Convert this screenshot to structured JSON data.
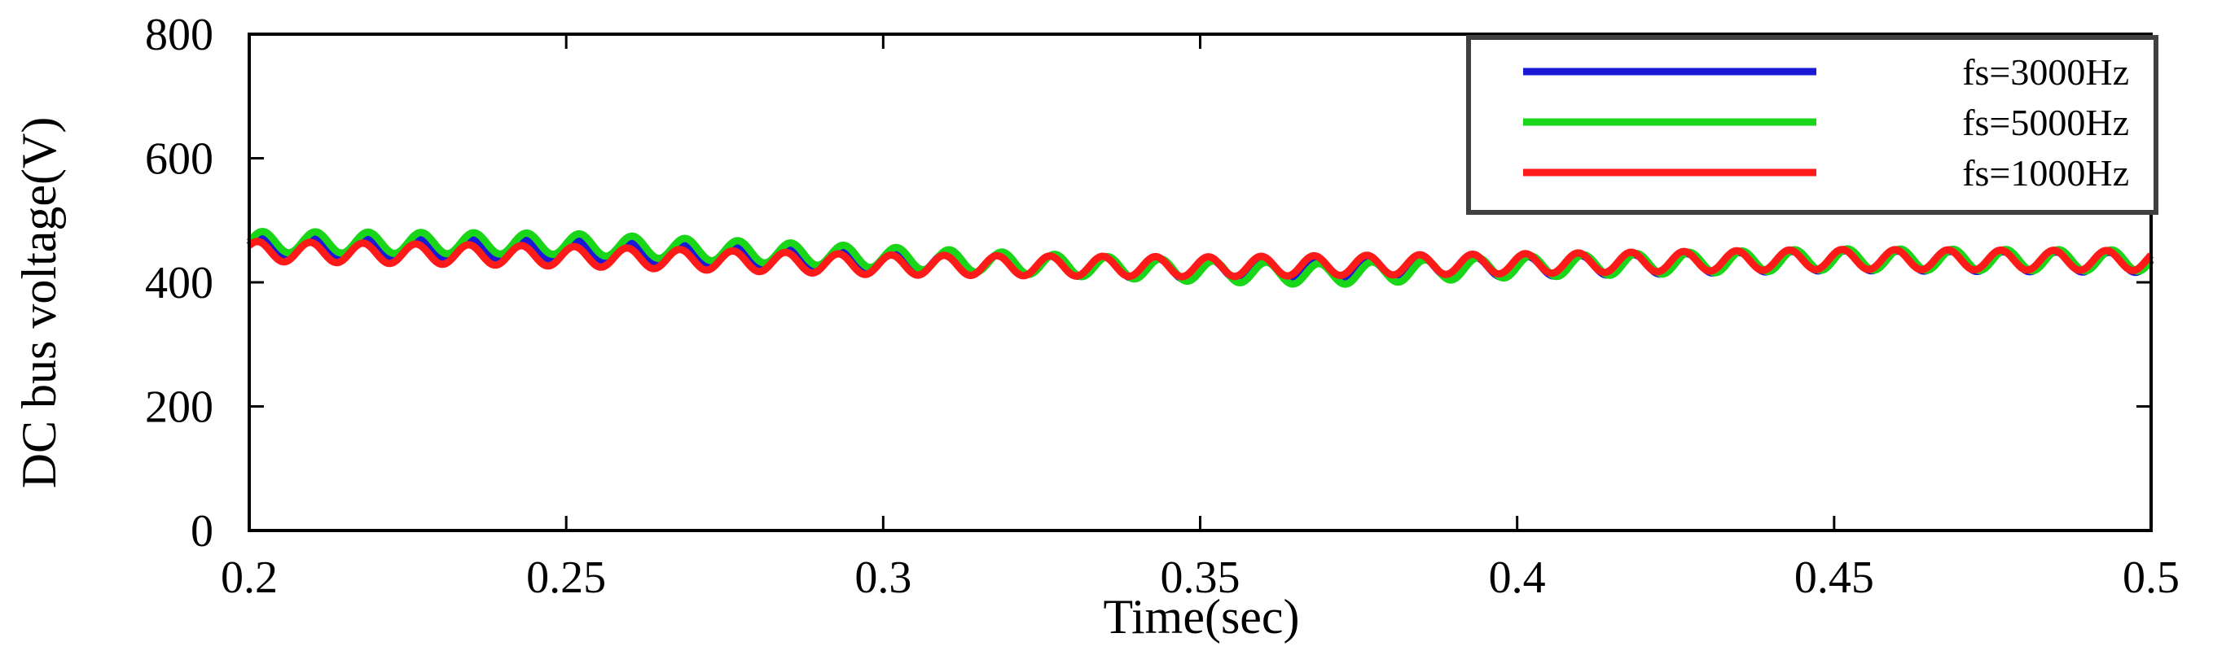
{
  "chart_data": {
    "type": "line",
    "title": "",
    "xlabel": "Time(sec)",
    "ylabel": "DC bus voltage(V)",
    "xlim": [
      0.2,
      0.5
    ],
    "ylim": [
      0,
      800
    ],
    "xticks": [
      0.2,
      0.25,
      0.3,
      0.35,
      0.4,
      0.45,
      0.5
    ],
    "xtick_labels": [
      "0.2",
      "0.25",
      "0.3",
      "0.35",
      "0.4",
      "0.45",
      "0.5"
    ],
    "yticks": [
      0,
      200,
      400,
      600,
      800
    ],
    "ytick_labels": [
      "0",
      "200",
      "400",
      "600",
      "800"
    ],
    "grid": false,
    "legend_position": "top-right",
    "ripple_frequency_hz": 120,
    "series": [
      {
        "name": "fs=3000Hz",
        "color": "#1a1ad6",
        "ripple_amplitude_v": 16,
        "ripple_phase_rad": 0.3,
        "mean_voltage": [
          [
            0.2,
            455
          ],
          [
            0.25,
            452
          ],
          [
            0.3,
            435
          ],
          [
            0.35,
            420
          ],
          [
            0.4,
            425
          ],
          [
            0.45,
            435
          ],
          [
            0.5,
            432
          ]
        ]
      },
      {
        "name": "fs=5000Hz",
        "color": "#19d619",
        "ripple_amplitude_v": 17,
        "ripple_phase_rad": 0.0,
        "mean_voltage": [
          [
            0.2,
            465
          ],
          [
            0.25,
            462
          ],
          [
            0.3,
            440
          ],
          [
            0.35,
            418
          ],
          [
            0.37,
            413
          ],
          [
            0.4,
            425
          ],
          [
            0.45,
            437
          ],
          [
            0.5,
            435
          ]
        ]
      },
      {
        "name": "fs=1000Hz",
        "color": "#ff1a1a",
        "ripple_amplitude_v": 16,
        "ripple_phase_rad": 0.6,
        "mean_voltage": [
          [
            0.2,
            450
          ],
          [
            0.25,
            442
          ],
          [
            0.3,
            428
          ],
          [
            0.35,
            425
          ],
          [
            0.4,
            430
          ],
          [
            0.45,
            437
          ],
          [
            0.5,
            435
          ]
        ]
      }
    ]
  }
}
